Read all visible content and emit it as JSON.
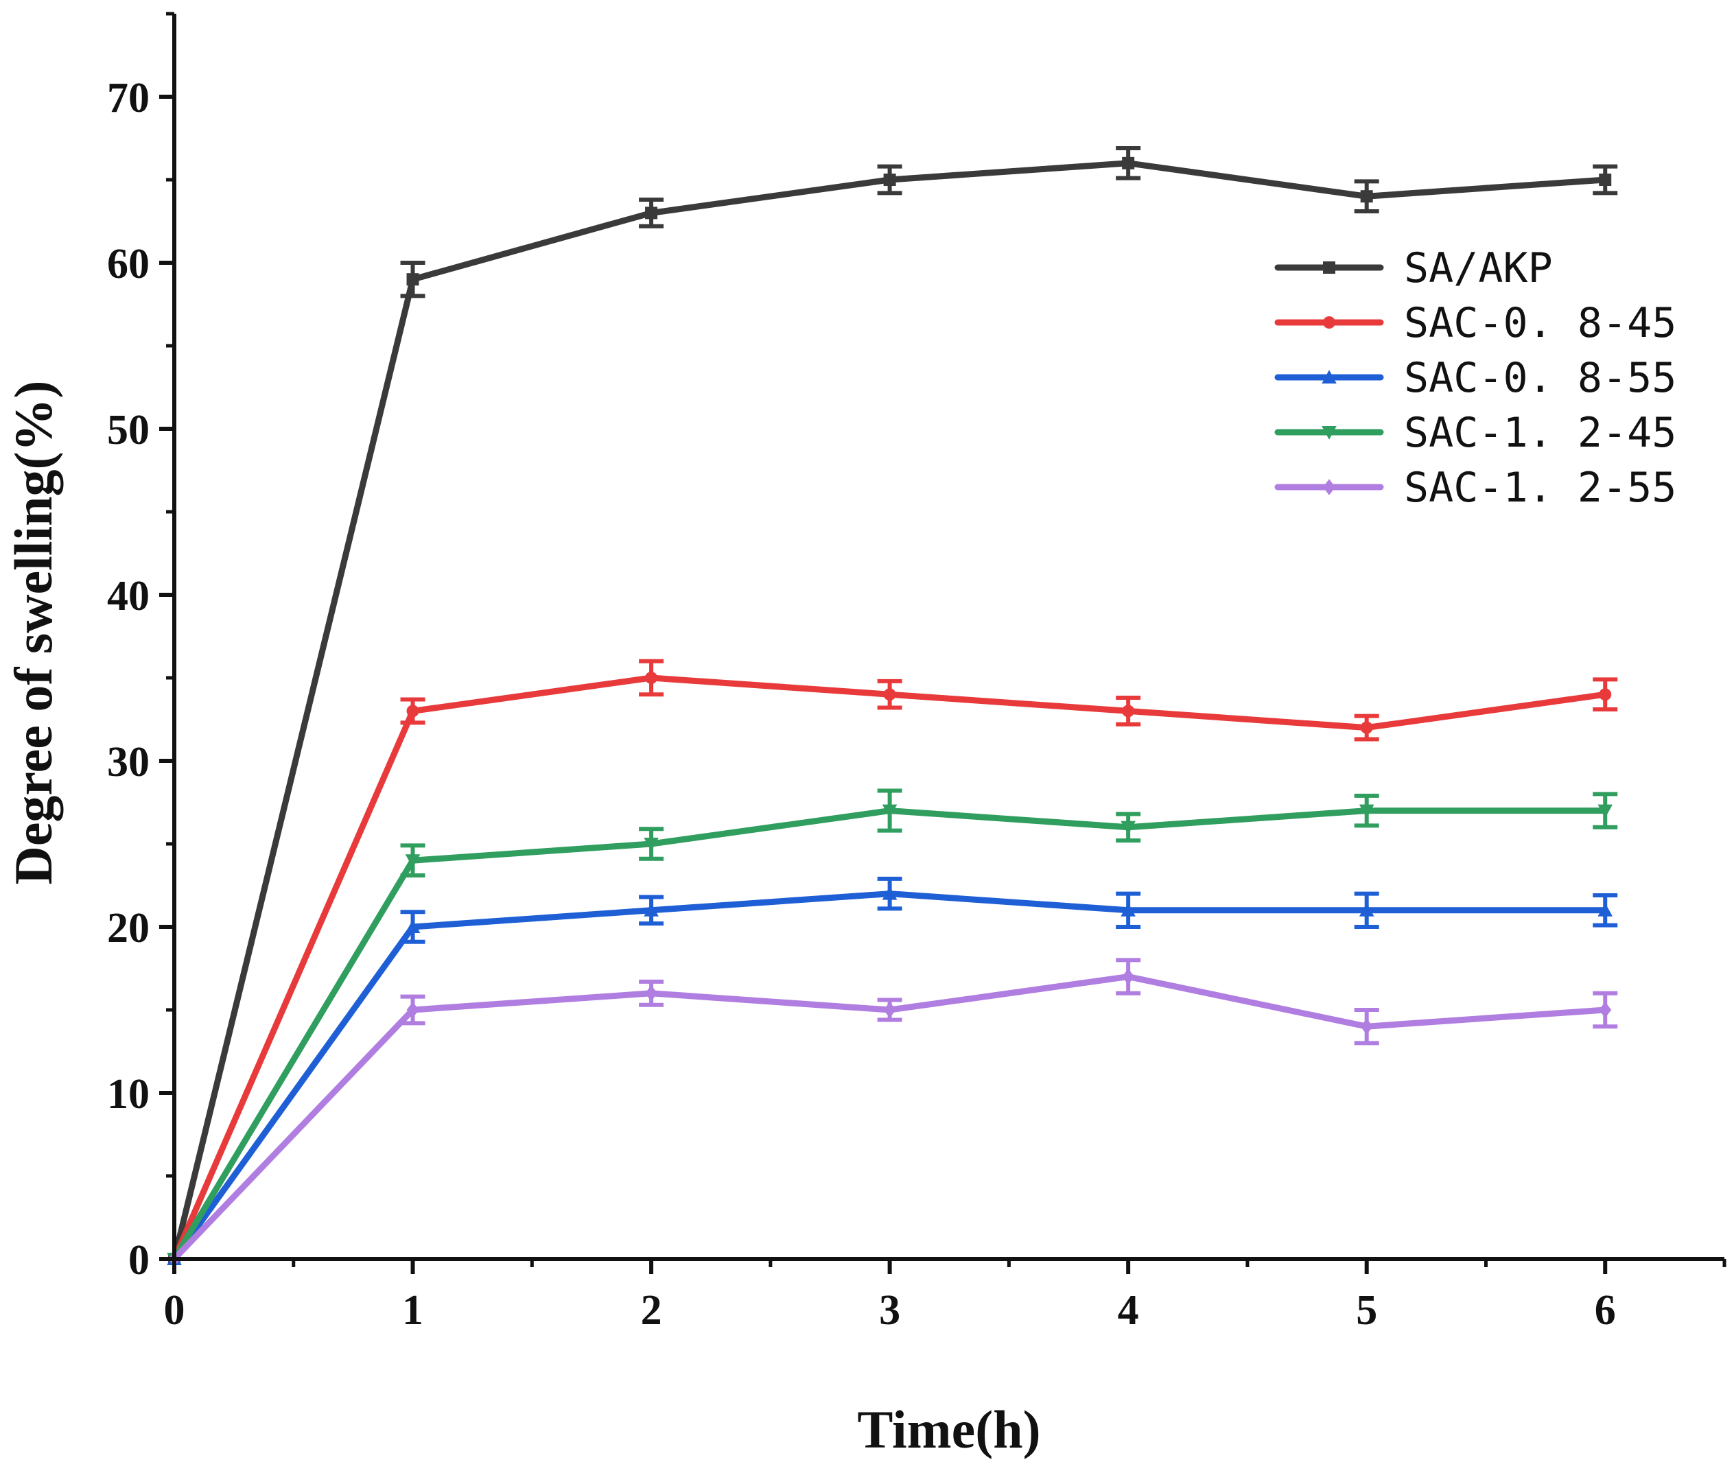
{
  "chart_data": {
    "type": "line",
    "title": "",
    "xlabel": "Time(h)",
    "ylabel": "Degree of swelling(%)",
    "xlim": [
      0,
      6.5
    ],
    "ylim": [
      0,
      75
    ],
    "x_ticks": [
      0,
      1,
      2,
      3,
      4,
      5,
      6
    ],
    "x_tick_labels": [
      "0",
      "1",
      "2",
      "3",
      "4",
      "5",
      "6"
    ],
    "y_ticks": [
      0,
      10,
      20,
      30,
      40,
      50,
      60,
      70
    ],
    "y_tick_labels": [
      "0",
      "10",
      "20",
      "30",
      "40",
      "50",
      "60",
      "70"
    ],
    "legend_position": "top-right",
    "x": [
      0,
      1,
      2,
      3,
      4,
      5,
      6
    ],
    "series": [
      {
        "name": "SA/AKP",
        "color": "#3a3a3a",
        "marker": "square",
        "values": [
          0,
          59,
          63,
          65,
          66,
          64,
          65
        ],
        "errors": [
          0,
          1.0,
          0.8,
          0.8,
          0.9,
          0.9,
          0.8
        ]
      },
      {
        "name": "SAC-0. 8-45",
        "color": "#e83a3a",
        "marker": "circle",
        "values": [
          0,
          33,
          35,
          34,
          33,
          32,
          34
        ],
        "errors": [
          0,
          0.7,
          1.0,
          0.8,
          0.8,
          0.7,
          0.9
        ]
      },
      {
        "name": "SAC-0. 8-55",
        "color": "#1f5fd6",
        "marker": "triangle-up",
        "values": [
          0,
          20,
          21,
          22,
          21,
          21,
          21
        ],
        "errors": [
          0,
          0.9,
          0.8,
          0.9,
          1.0,
          1.0,
          0.9
        ]
      },
      {
        "name": "SAC-1. 2-45",
        "color": "#2f9e5e",
        "marker": "triangle-down",
        "values": [
          0,
          24,
          25,
          27,
          26,
          27,
          27
        ],
        "errors": [
          0,
          0.9,
          0.9,
          1.2,
          0.8,
          0.9,
          1.0
        ]
      },
      {
        "name": "SAC-1. 2-55",
        "color": "#b07ee0",
        "marker": "diamond",
        "values": [
          0,
          15,
          16,
          15,
          17,
          14,
          15
        ],
        "errors": [
          0,
          0.8,
          0.7,
          0.6,
          1.0,
          1.0,
          1.0
        ]
      }
    ]
  }
}
